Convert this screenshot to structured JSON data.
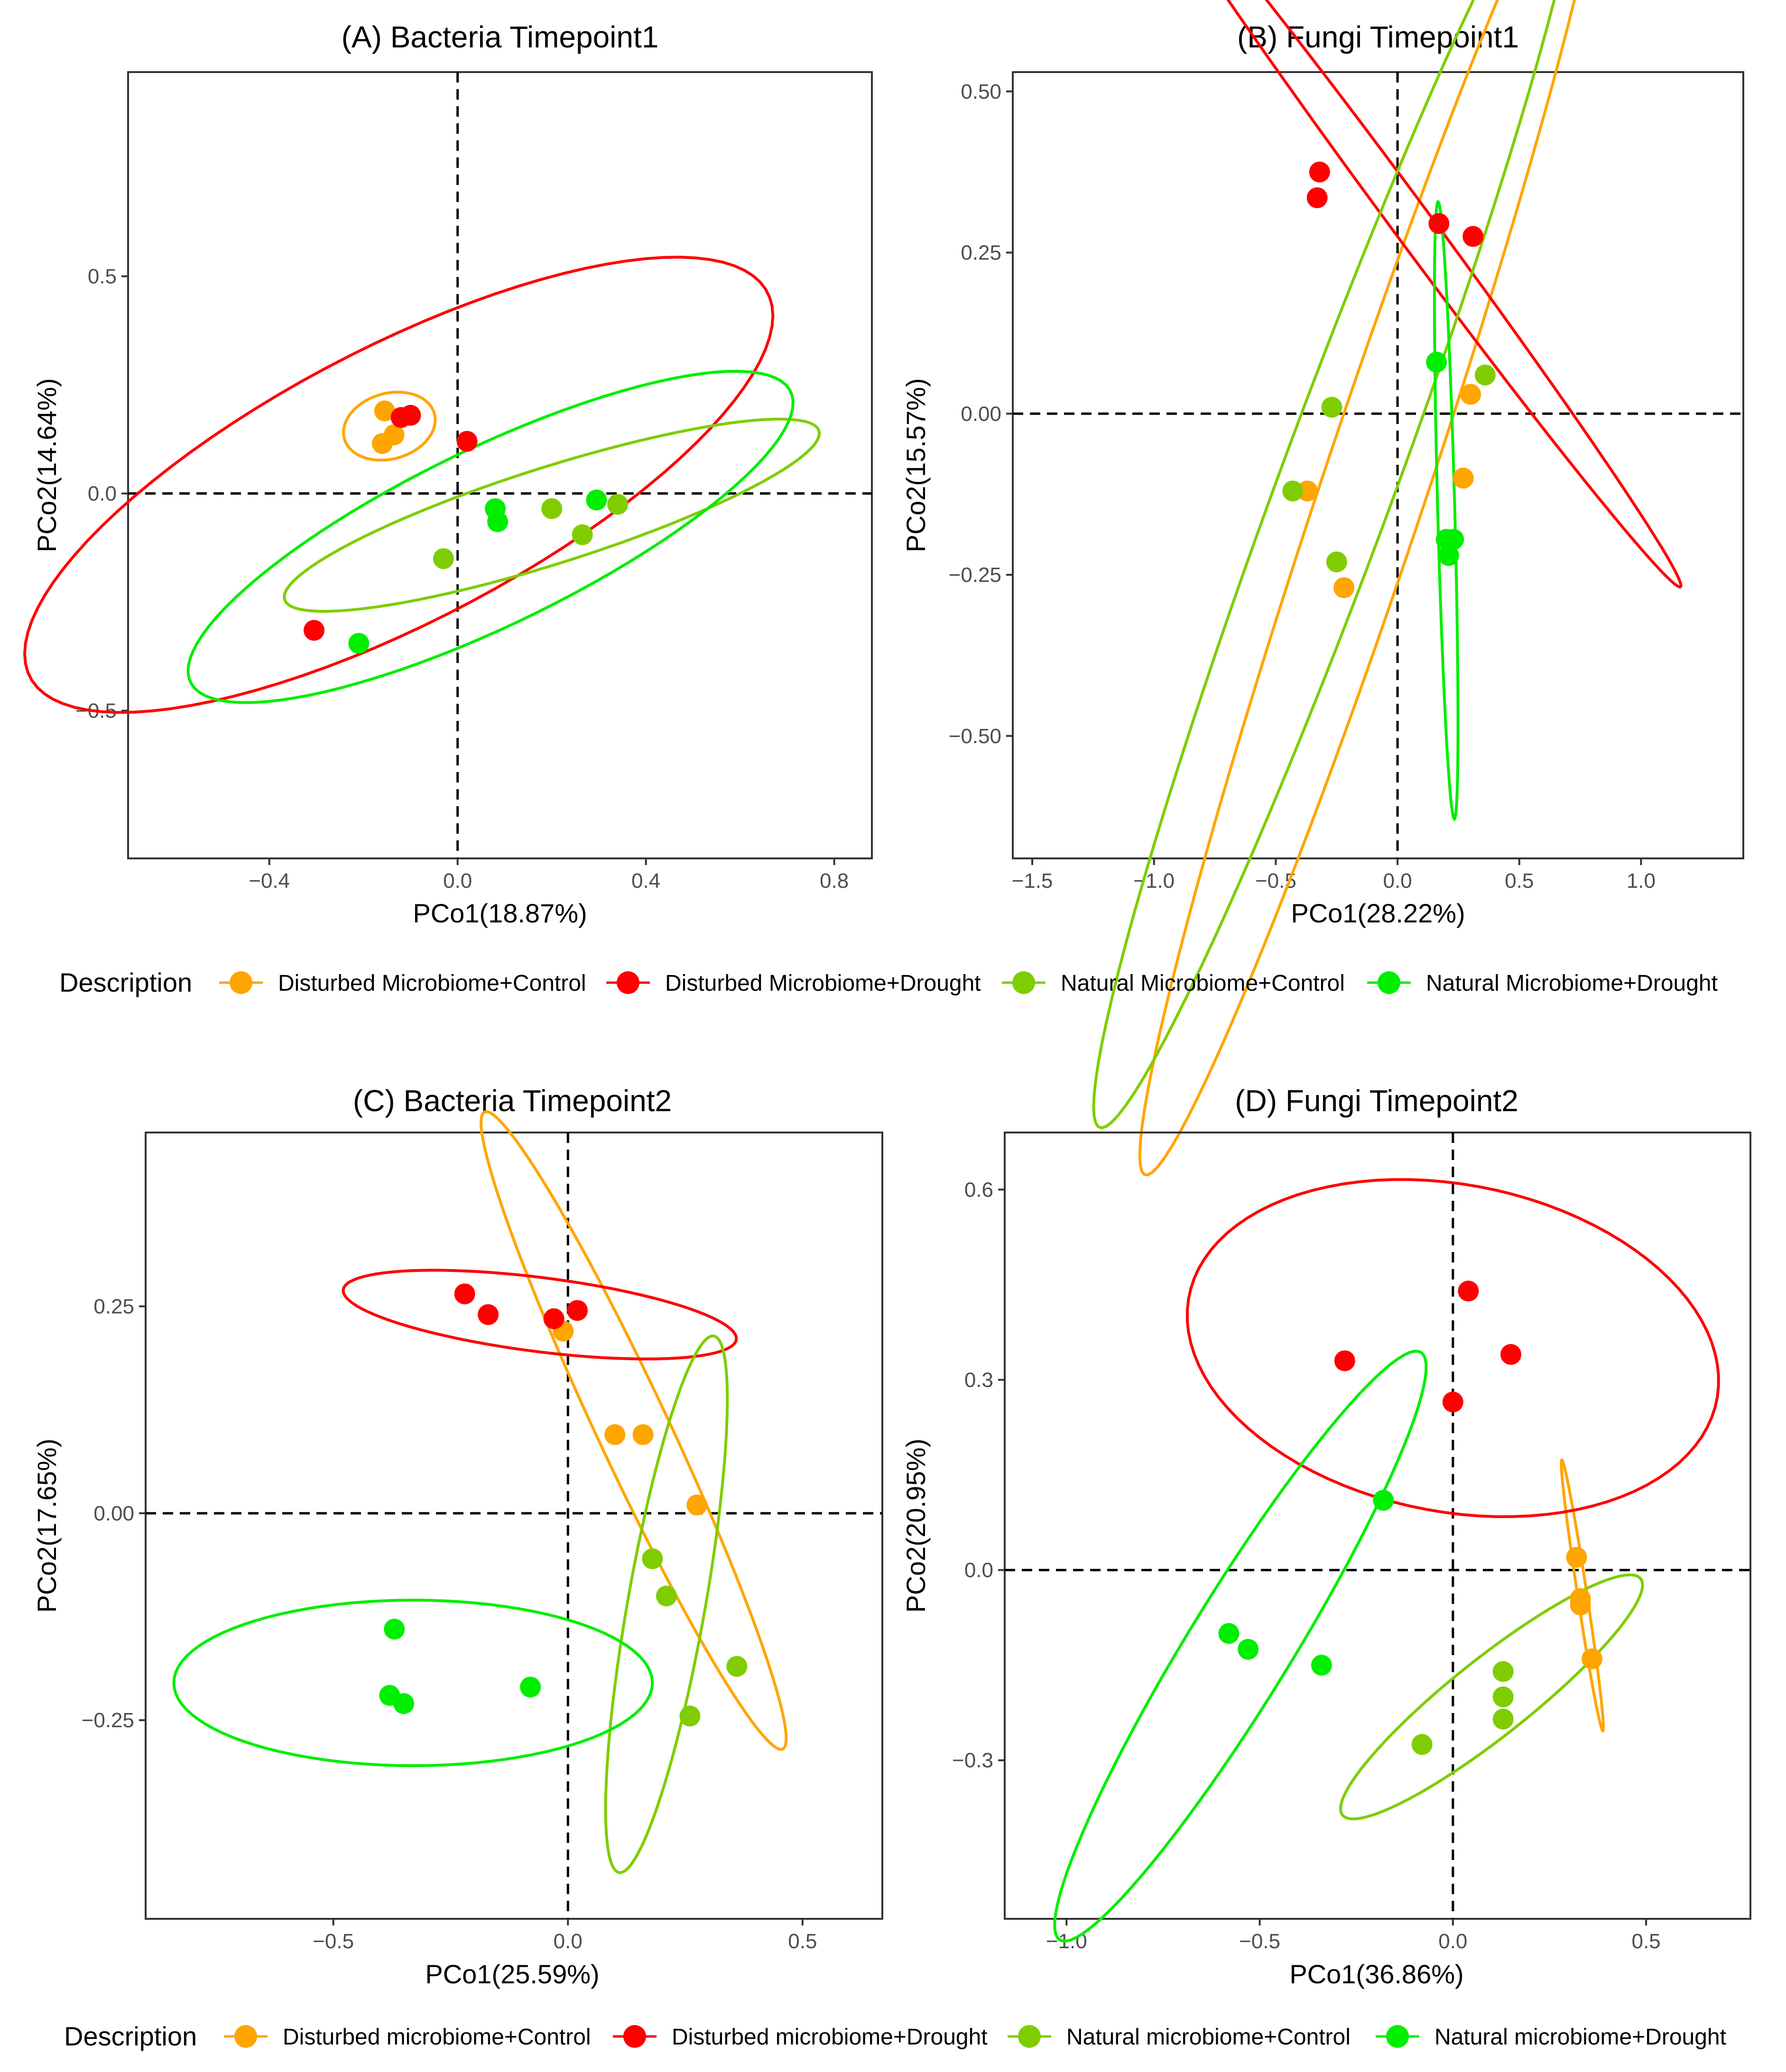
{
  "chart_data": [
    {
      "type": "scatter",
      "title": "(A) Bacteria Timepoint1",
      "xlabel": "PCo1(18.87%)",
      "ylabel": "PCo2(14.64%)",
      "xlim": [
        -0.7,
        0.88
      ],
      "ylim": [
        -0.84,
        0.97
      ],
      "xticks": [
        -0.4,
        0.0,
        0.4,
        0.8
      ],
      "xtick_labels": [
        "−0.4",
        "0.0",
        "0.4",
        "0.8"
      ],
      "yticks": [
        -0.5,
        0.0,
        0.5
      ],
      "ytick_labels": [
        "−0.5",
        "0.0",
        "0.5"
      ],
      "grid": false,
      "series": [
        {
          "name": "Disturbed Microbiome+Control",
          "color": "#FFA500",
          "points": [
            [
              -0.155,
              0.19
            ],
            [
              -0.135,
              0.135
            ],
            [
              -0.16,
              0.115
            ]
          ],
          "ellipse": {
            "center": [
              -0.145,
              0.155
            ],
            "rx": 0.075,
            "ry": 0.1,
            "angle": -70
          }
        },
        {
          "name": "Disturbed Microbiome+Drought",
          "color": "#FF0000",
          "points": [
            [
              -0.12,
              0.175
            ],
            [
              -0.1,
              0.18
            ],
            [
              0.02,
              0.12
            ],
            [
              -0.305,
              -0.315
            ]
          ],
          "ellipse": {
            "center": [
              -0.125,
              0.02
            ],
            "rx": 0.31,
            "ry": 0.9,
            "angle": -60
          }
        },
        {
          "name": "Natural Microbiome+Control",
          "color": "#7FCD00",
          "points": [
            [
              -0.03,
              -0.15
            ],
            [
              0.2,
              -0.035
            ],
            [
              0.265,
              -0.095
            ],
            [
              0.34,
              -0.025
            ]
          ],
          "ellipse": {
            "center": [
              0.2,
              -0.05
            ],
            "rx": 0.6,
            "ry": 0.11,
            "angle": 19
          }
        },
        {
          "name": "Natural Microbiome+Drought",
          "color": "#00EE00",
          "points": [
            [
              -0.21,
              -0.345
            ],
            [
              0.08,
              -0.035
            ],
            [
              0.085,
              -0.065
            ],
            [
              0.295,
              -0.015
            ]
          ],
          "ellipse": {
            "center": [
              0.07,
              -0.1
            ],
            "rx": 0.72,
            "ry": 0.2,
            "angle": 28
          }
        }
      ]
    },
    {
      "type": "scatter",
      "title": "(B) Fungi Timepoint1",
      "xlabel": "PCo1(28.22%)",
      "ylabel": "PCo2(15.57%)",
      "xlim": [
        -1.58,
        1.42
      ],
      "ylim": [
        -0.69,
        0.53
      ],
      "xticks": [
        -1.5,
        -1.0,
        -0.5,
        0.0,
        0.5,
        1.0
      ],
      "xtick_labels": [
        "−1.5",
        "−1.0",
        "−0.5",
        "0.0",
        "0.5",
        "1.0"
      ],
      "yticks": [
        -0.5,
        -0.25,
        0.0,
        0.25,
        0.5
      ],
      "ytick_labels": [
        "−0.50",
        "−0.25",
        "0.00",
        "0.25",
        "0.50"
      ],
      "grid": false,
      "series": [
        {
          "name": "Disturbed Microbiome+Control",
          "color": "#FFA500",
          "points": [
            [
              0.3,
              0.03
            ],
            [
              0.27,
              -0.1
            ],
            [
              -0.37,
              -0.12
            ],
            [
              -0.22,
              -0.27
            ]
          ],
          "ellipse": {
            "center": [
              -0.1,
              -0.12
            ],
            "rx": 1.42,
            "ry": 0.17,
            "angle": 48
          }
        },
        {
          "name": "Disturbed Microbiome+Drought",
          "color": "#FF0000",
          "points": [
            [
              -0.32,
              0.375
            ],
            [
              -0.33,
              0.335
            ],
            [
              0.17,
              0.295
            ],
            [
              0.31,
              0.275
            ]
          ],
          "ellipse": {
            "center": [
              0.05,
              0.3
            ],
            "rx": 1.25,
            "ry": 0.045,
            "angle": -27
          }
        },
        {
          "name": "Natural Microbiome+Control",
          "color": "#7FCD00",
          "points": [
            [
              0.36,
              0.06
            ],
            [
              -0.27,
              0.01
            ],
            [
              -0.43,
              -0.12
            ],
            [
              -0.25,
              -0.23
            ]
          ],
          "ellipse": {
            "center": [
              -0.25,
              -0.11
            ],
            "rx": 1.4,
            "ry": 0.18,
            "angle": 45
          }
        },
        {
          "name": "Natural Microbiome+Drought",
          "color": "#00EE00",
          "points": [
            [
              0.16,
              0.08
            ],
            [
              0.2,
              -0.195
            ],
            [
              0.23,
              -0.195
            ],
            [
              0.21,
              -0.22
            ]
          ],
          "ellipse": {
            "center": [
              0.2,
              -0.15
            ],
            "rx": 0.48,
            "ry": 0.035,
            "angle": -86
          }
        }
      ]
    },
    {
      "type": "scatter",
      "title": "(C) Bacteria Timepoint2",
      "xlabel": "PCo1(25.59%)",
      "ylabel": "PCo2(17.65%)",
      "xlim": [
        -0.9,
        0.67
      ],
      "ylim": [
        -0.49,
        0.46
      ],
      "xticks": [
        -0.5,
        0.0,
        0.5
      ],
      "xtick_labels": [
        "−0.5",
        "0.0",
        "0.5"
      ],
      "yticks": [
        -0.25,
        0.0,
        0.25
      ],
      "ytick_labels": [
        "−0.25",
        "0.00",
        "0.25"
      ],
      "grid": false,
      "series": [
        {
          "name": "Disturbed microbiome+Control",
          "color": "#FFA500",
          "points": [
            [
              -0.01,
              0.22
            ],
            [
              0.1,
              0.095
            ],
            [
              0.16,
              0.095
            ],
            [
              0.275,
              0.01
            ]
          ],
          "ellipse": {
            "center": [
              0.14,
              0.1
            ],
            "rx": 0.5,
            "ry": 0.065,
            "angle": -50
          }
        },
        {
          "name": "Disturbed microbiome+Drought",
          "color": "#FF0000",
          "points": [
            [
              -0.22,
              0.265
            ],
            [
              -0.17,
              0.24
            ],
            [
              -0.03,
              0.235
            ],
            [
              0.02,
              0.245
            ]
          ],
          "ellipse": {
            "center": [
              -0.06,
              0.24
            ],
            "rx": 0.42,
            "ry": 0.045,
            "angle": -4
          }
        },
        {
          "name": "Natural microbiome+Control",
          "color": "#7FCD00",
          "points": [
            [
              0.18,
              -0.055
            ],
            [
              0.21,
              -0.1
            ],
            [
              0.36,
              -0.185
            ],
            [
              0.26,
              -0.245
            ]
          ],
          "ellipse": {
            "center": [
              0.21,
              -0.11
            ],
            "rx": 0.34,
            "ry": 0.08,
            "angle": 72
          }
        },
        {
          "name": "Natural microbiome+Drought",
          "color": "#00EE00",
          "points": [
            [
              -0.37,
              -0.14
            ],
            [
              -0.38,
              -0.22
            ],
            [
              -0.35,
              -0.23
            ],
            [
              -0.08,
              -0.21
            ]
          ],
          "ellipse": {
            "center": [
              -0.33,
              -0.205
            ],
            "rx": 0.51,
            "ry": 0.1,
            "angle": 0
          }
        }
      ]
    },
    {
      "type": "scatter",
      "title": "(D) Fungi Timepoint2",
      "xlabel": "PCo1(36.86%)",
      "ylabel": "PCo2(20.95%)",
      "xlim": [
        -1.16,
        0.77
      ],
      "ylim": [
        -0.55,
        0.69
      ],
      "xticks": [
        -1.0,
        -0.5,
        0.0,
        0.5
      ],
      "xtick_labels": [
        "−1.0",
        "−0.5",
        "0.0",
        "0.5"
      ],
      "yticks": [
        -0.3,
        0.0,
        0.3,
        0.6
      ],
      "ytick_labels": [
        "−0.3",
        "0.0",
        "0.3",
        "0.6"
      ],
      "grid": false,
      "series": [
        {
          "name": "Disturbed microbiome+Control",
          "color": "#FFA500",
          "points": [
            [
              0.32,
              0.02
            ],
            [
              0.33,
              -0.045
            ],
            [
              0.33,
              -0.055
            ],
            [
              0.36,
              -0.14
            ]
          ],
          "ellipse": {
            "center": [
              0.335,
              -0.04
            ],
            "rx": 0.22,
            "ry": 0.012,
            "angle": -76
          }
        },
        {
          "name": "Disturbed microbiome+Drought",
          "color": "#FF0000",
          "points": [
            [
              -0.28,
              0.33
            ],
            [
              0.04,
              0.44
            ],
            [
              0.15,
              0.34
            ],
            [
              0.0,
              0.265
            ]
          ],
          "ellipse": {
            "center": [
              0.0,
              0.35
            ],
            "rx": 0.69,
            "ry": 0.26,
            "angle": -5
          }
        },
        {
          "name": "Natural microbiome+Control",
          "color": "#7FCD00",
          "points": [
            [
              0.13,
              -0.16
            ],
            [
              0.13,
              -0.2
            ],
            [
              0.13,
              -0.235
            ],
            [
              -0.08,
              -0.275
            ]
          ],
          "ellipse": {
            "center": [
              0.1,
              -0.2
            ],
            "rx": 0.43,
            "ry": 0.07,
            "angle": 25
          }
        },
        {
          "name": "Natural microbiome+Drought",
          "color": "#00EE00",
          "points": [
            [
              -0.18,
              0.11
            ],
            [
              -0.58,
              -0.1
            ],
            [
              -0.53,
              -0.125
            ],
            [
              -0.34,
              -0.15
            ]
          ],
          "ellipse": {
            "center": [
              -0.55,
              -0.12
            ],
            "rx": 0.66,
            "ry": 0.11,
            "angle": 44
          }
        }
      ]
    }
  ],
  "legends": [
    {
      "title": "Description",
      "items": [
        {
          "label": "Disturbed Microbiome+Control",
          "color": "#FFA500"
        },
        {
          "label": "Disturbed Microbiome+Drought",
          "color": "#FF0000"
        },
        {
          "label": "Natural Microbiome+Control",
          "color": "#7FCD00"
        },
        {
          "label": "Natural Microbiome+Drought",
          "color": "#00EE00"
        }
      ]
    },
    {
      "title": "Description",
      "items": [
        {
          "label": "Disturbed microbiome+Control",
          "color": "#FFA500"
        },
        {
          "label": "Disturbed microbiome+Drought",
          "color": "#FF0000"
        },
        {
          "label": "Natural microbiome+Control",
          "color": "#7FCD00"
        },
        {
          "label": "Natural microbiome+Drought",
          "color": "#00EE00"
        }
      ]
    }
  ]
}
